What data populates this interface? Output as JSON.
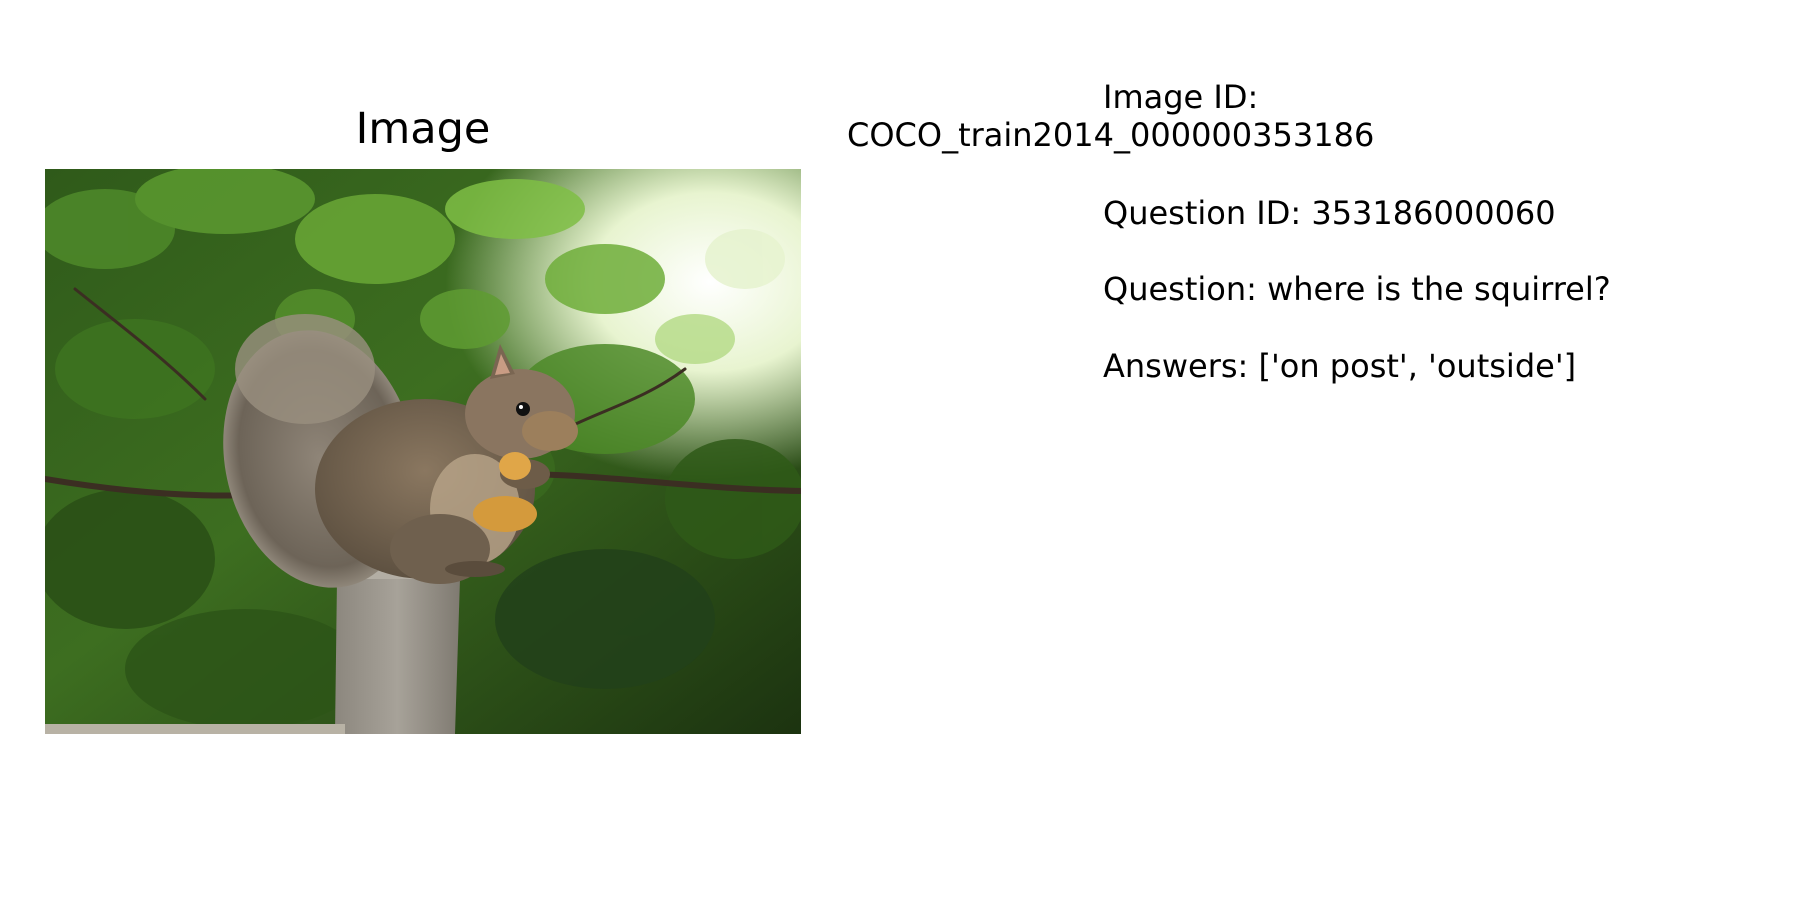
{
  "panel": {
    "title": "Image"
  },
  "photo": {
    "subject": "squirrel",
    "depicted_objects": [
      "squirrel",
      "stone post",
      "foliage",
      "food"
    ]
  },
  "info": {
    "image_id_label": "Image ID:",
    "image_id_value": "COCO_train2014_000000353186",
    "question_id_text": "Question ID: 353186000060",
    "question_text": "Question: where is the squirrel?",
    "answers_text": "Answers: ['on post', 'outside']"
  },
  "colors": {
    "background": "#ffffff",
    "text": "#000000",
    "foliage_dark": "#1f3a12",
    "foliage_mid": "#3f7a22",
    "foliage_light": "#8cc755",
    "squirrel_fur": "#7a6a55",
    "post_stone": "#9a958c"
  }
}
